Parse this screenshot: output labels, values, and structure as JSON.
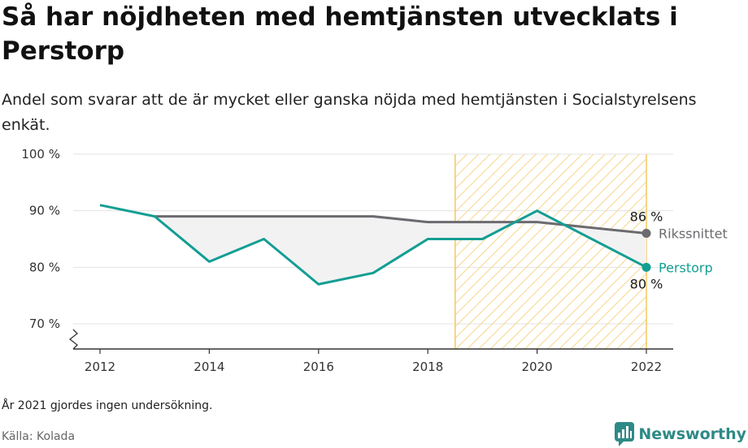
{
  "title": "Så har nöjdheten med hemtjänsten utvecklats i Perstorp",
  "subtitle": "Andel som svarar att de är mycket eller ganska nöjda med hemtjänsten i Socialstyrelsens enkät.",
  "note": "År 2021 gjordes ingen undersökning.",
  "source": "Källa: Kolada",
  "brand": {
    "name": "Newsworthy",
    "logo_icon": "newsworthy-logo-icon"
  },
  "colors": {
    "perstorp": "#139e93",
    "riket": "#6b6b6f",
    "highlight_stroke": "#f3c862",
    "highlight_hatch": "#f6d68c",
    "gap_fill": "#f2f2f3",
    "grid": "#e3e3e3"
  },
  "chart_data": {
    "type": "line",
    "x": [
      2012,
      2013,
      2014,
      2015,
      2016,
      2017,
      2018,
      2019,
      2020,
      2022
    ],
    "series": [
      {
        "name": "Perstorp",
        "values": [
          91,
          89,
          81,
          85,
          77,
          79,
          85,
          85,
          90,
          80
        ]
      },
      {
        "name": "Rikssnittet",
        "values": [
          null,
          89,
          89,
          89,
          89,
          89,
          88,
          88,
          88,
          86
        ]
      }
    ],
    "end_labels": {
      "perstorp": "80 %",
      "riket": "86 %"
    },
    "y_ticks": [
      {
        "value": 70,
        "label": "70 %"
      },
      {
        "value": 80,
        "label": "80 %"
      },
      {
        "value": 90,
        "label": "90 %"
      },
      {
        "value": 100,
        "label": "100 %"
      }
    ],
    "x_ticks": [
      {
        "value": 2012,
        "label": "2012"
      },
      {
        "value": 2014,
        "label": "2014"
      },
      {
        "value": 2016,
        "label": "2016"
      },
      {
        "value": 2018,
        "label": "2018"
      },
      {
        "value": 2020,
        "label": "2020"
      },
      {
        "value": 2022,
        "label": "2022"
      }
    ],
    "ylim": [
      70,
      100
    ],
    "xlim": [
      2011.5,
      2022.5
    ],
    "highlight_range": [
      2018.5,
      2022
    ],
    "y_axis_break": true,
    "grid": true,
    "legend": "direct-labels-right"
  }
}
